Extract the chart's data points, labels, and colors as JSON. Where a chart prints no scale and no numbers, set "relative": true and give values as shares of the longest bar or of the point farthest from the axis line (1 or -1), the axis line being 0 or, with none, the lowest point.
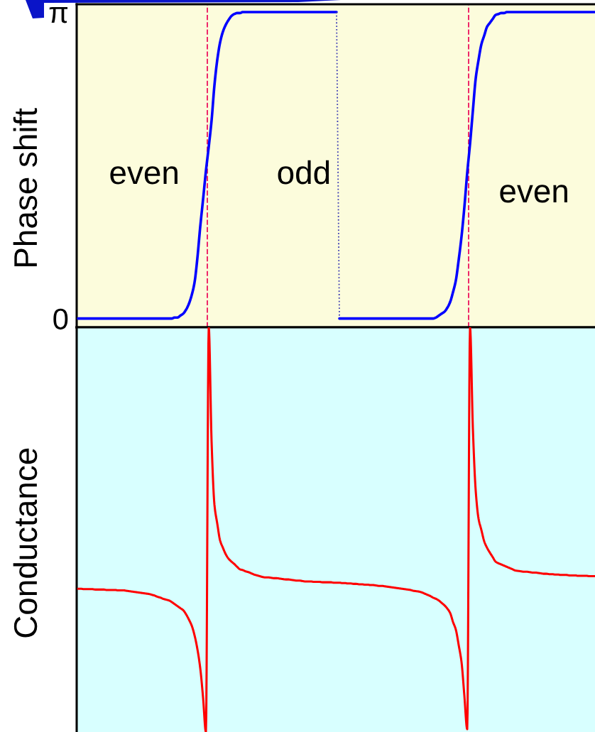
{
  "chart_data": [
    {
      "type": "line",
      "ylabel": "Phase shift",
      "tick_labels": "y",
      "ylim": [
        -0.09,
        3.22
      ],
      "yticks": [
        {
          "value": 3.14,
          "label": "π"
        },
        0
      ],
      "categories": [
        null,
        null,
        null,
        null,
        null,
        null,
        null,
        null,
        null,
        null,
        null,
        null,
        null,
        null,
        null,
        null,
        null,
        null,
        null,
        null,
        null,
        null,
        null,
        null,
        null,
        null,
        null,
        null,
        null,
        null,
        null,
        null,
        null,
        null,
        null,
        null,
        null,
        null,
        null,
        null,
        null,
        null,
        null,
        null,
        null,
        null,
        null,
        null,
        null,
        null,
        null,
        null,
        null,
        null,
        null,
        null,
        null,
        null,
        null,
        null,
        null,
        null,
        null,
        null,
        null,
        null,
        null,
        null,
        null,
        null,
        null,
        null,
        null,
        null,
        null,
        null,
        null,
        null,
        null,
        null,
        null,
        null,
        null,
        null,
        null,
        null,
        null,
        null,
        null,
        null,
        null,
        null,
        null,
        null,
        null,
        null,
        null,
        null,
        null,
        null,
        null,
        null,
        null,
        null,
        null,
        null,
        null,
        null,
        null,
        null,
        null,
        null,
        null,
        null,
        null,
        null,
        null,
        null,
        null,
        null,
        null,
        null,
        null,
        null,
        null,
        null,
        null,
        null,
        null,
        null,
        null,
        null,
        null,
        null,
        null,
        null,
        null,
        null,
        null,
        null,
        null,
        null,
        null,
        null,
        null,
        null,
        null,
        null,
        null,
        null,
        null,
        null,
        null,
        null,
        null,
        null,
        null,
        null,
        null,
        null,
        null,
        null,
        null,
        null,
        null,
        null,
        null,
        null,
        null,
        null,
        null,
        null,
        null,
        null,
        null,
        null,
        null,
        null,
        null,
        null,
        null,
        null,
        null
      ],
      "series": [
        {
          "color": "#0000ff",
          "values": [
            0,
            0,
            0,
            0,
            0,
            0,
            0,
            0,
            0,
            0,
            0,
            0,
            0,
            0,
            0,
            0,
            0,
            0,
            0,
            0,
            0,
            0,
            0,
            0,
            0,
            0,
            0,
            0,
            0,
            0,
            0,
            0,
            0,
            0,
            0.01,
            0.01,
            0.03,
            0.05,
            0.09,
            0.15,
            0.24,
            0.37,
            0.62,
            0.94,
            1.22,
            1.51,
            1.76,
            2.03,
            2.39,
            2.65,
            2.83,
            2.94,
            3.01,
            3.06,
            3.1,
            3.12,
            3.13,
            3.13,
            3.14,
            3.14,
            3.14,
            3.14,
            3.14,
            3.14,
            3.14,
            3.14,
            3.14,
            3.14,
            3.14,
            3.14,
            3.14,
            3.14,
            3.14,
            3.14,
            3.14,
            3.14,
            3.14,
            3.14,
            3.14,
            3.14,
            3.14,
            3.14,
            3.14,
            3.14,
            3.14,
            3.14,
            3.14,
            3.14,
            3.14,
            3.14,
            3.14,
            3.14,
            null,
            null,
            null,
            null,
            null,
            null,
            null,
            null,
            null,
            null,
            null,
            null,
            null,
            null,
            null,
            null,
            null,
            null,
            null,
            null,
            null,
            null,
            null,
            null,
            null,
            null,
            null,
            null,
            null,
            null,
            null,
            null,
            null,
            null,
            null,
            null,
            null,
            null,
            null,
            null,
            null,
            null,
            null,
            null,
            null,
            null,
            null,
            null,
            null,
            null,
            null,
            null,
            null,
            null,
            null,
            null,
            null,
            null,
            null,
            null,
            null,
            null,
            null,
            null,
            null,
            null,
            null,
            null,
            null,
            null,
            null,
            null,
            null,
            null,
            null,
            null,
            null,
            null,
            null,
            null,
            null,
            null,
            null,
            null,
            null,
            null,
            null,
            null,
            null,
            null,
            null
          ]
        },
        {
          "color": "#3c3cb4",
          "line_style": "dotted",
          "values": [
            null,
            null,
            null,
            null,
            null,
            null,
            null,
            null,
            null,
            null,
            null,
            null,
            null,
            null,
            null,
            null,
            null,
            null,
            null,
            null,
            null,
            null,
            null,
            null,
            null,
            null,
            null,
            null,
            null,
            null,
            null,
            null,
            null,
            null,
            null,
            null,
            null,
            null,
            null,
            null,
            null,
            null,
            null,
            null,
            null,
            null,
            null,
            null,
            null,
            null,
            null,
            null,
            null,
            null,
            null,
            null,
            null,
            null,
            null,
            null,
            null,
            null,
            null,
            null,
            null,
            null,
            null,
            null,
            null,
            null,
            null,
            null,
            null,
            null,
            null,
            null,
            null,
            null,
            null,
            null,
            null,
            null,
            null,
            null,
            null,
            null,
            null,
            null,
            null,
            null,
            null,
            3.14,
            0,
            null,
            null,
            null,
            null,
            null,
            null,
            null,
            null,
            null,
            null,
            null,
            null,
            null,
            null,
            null,
            null,
            null,
            null,
            null,
            null,
            null,
            null,
            null,
            null,
            null,
            null,
            null,
            null,
            null,
            null,
            null,
            null,
            null,
            null,
            null,
            null,
            null,
            null,
            null,
            null,
            null,
            null,
            null,
            null,
            null,
            null,
            null,
            null,
            null,
            null,
            null,
            null,
            null,
            null,
            null,
            null,
            null,
            null,
            null,
            null,
            null,
            null,
            null,
            null,
            null,
            null,
            null,
            null,
            null,
            null,
            null,
            null,
            null,
            null,
            null,
            null,
            null,
            null,
            null,
            null,
            null,
            null,
            null,
            null,
            null,
            null,
            null,
            null,
            null,
            null
          ]
        },
        {
          "color": "#0000ff",
          "values": [
            null,
            null,
            null,
            null,
            null,
            null,
            null,
            null,
            null,
            null,
            null,
            null,
            null,
            null,
            null,
            null,
            null,
            null,
            null,
            null,
            null,
            null,
            null,
            null,
            null,
            null,
            null,
            null,
            null,
            null,
            null,
            null,
            null,
            null,
            null,
            null,
            null,
            null,
            null,
            null,
            null,
            null,
            null,
            null,
            null,
            null,
            null,
            null,
            null,
            null,
            null,
            null,
            null,
            null,
            null,
            null,
            null,
            null,
            null,
            null,
            null,
            null,
            null,
            null,
            null,
            null,
            null,
            null,
            null,
            null,
            null,
            null,
            null,
            null,
            null,
            null,
            null,
            null,
            null,
            null,
            null,
            null,
            null,
            null,
            null,
            null,
            null,
            null,
            null,
            null,
            null,
            null,
            0,
            0,
            0,
            0,
            0,
            0,
            0,
            0,
            0,
            0,
            0,
            0,
            0,
            0,
            0,
            0,
            0,
            0,
            0,
            0,
            0,
            0,
            0,
            0,
            0,
            0,
            0,
            0,
            0,
            0,
            0,
            0,
            0,
            0,
            0.01,
            0.03,
            0.05,
            0.07,
            0.11,
            0.17,
            0.27,
            0.39,
            0.6,
            0.84,
            1.14,
            1.49,
            1.79,
            2.13,
            2.46,
            2.65,
            2.81,
            2.9,
            2.99,
            3.03,
            3.07,
            3.11,
            3.12,
            3.13,
            3.13,
            3.14,
            3.14,
            3.14,
            3.14,
            3.14,
            3.14,
            3.14,
            3.14,
            3.14,
            3.14,
            3.14,
            3.14,
            3.14,
            3.14,
            3.14,
            3.14,
            3.14,
            3.14,
            3.14,
            3.14,
            3.14,
            3.14,
            3.14,
            3.14,
            3.14,
            3.14,
            3.14,
            3.14,
            3.14,
            3.14,
            3.14,
            3.14
          ]
        }
      ],
      "annotations": [
        "even",
        "odd",
        "even"
      ]
    },
    {
      "type": "line",
      "ylabel": "Conductance",
      "relative": true,
      "tick_labels": false,
      "categories": [
        null,
        null,
        null,
        null,
        null,
        null,
        null,
        null,
        null,
        null,
        null,
        null,
        null,
        null,
        null,
        null,
        null,
        null,
        null,
        null,
        null,
        null,
        null,
        null,
        null,
        null,
        null,
        null,
        null,
        null,
        null,
        null,
        null,
        null,
        null,
        null,
        null,
        null,
        null,
        null,
        null,
        null,
        null,
        null,
        null,
        null,
        null,
        null,
        null,
        null,
        null,
        null,
        null,
        null,
        null,
        null,
        null,
        null,
        null,
        null,
        null,
        null,
        null,
        null,
        null,
        null,
        null,
        null,
        null,
        null,
        null,
        null,
        null,
        null,
        null,
        null,
        null,
        null,
        null,
        null,
        null,
        null,
        null,
        null,
        null,
        null,
        null,
        null,
        null,
        null,
        null,
        null,
        null,
        null,
        null,
        null,
        null,
        null,
        null,
        null,
        null,
        null,
        null,
        null,
        null,
        null,
        null,
        null,
        null,
        null,
        null,
        null,
        null,
        null,
        null,
        null,
        null,
        null,
        null,
        null,
        null,
        null,
        null,
        null,
        null,
        null,
        null,
        null,
        null,
        null,
        null,
        null,
        null,
        null,
        null,
        null,
        null,
        null,
        null,
        null,
        null,
        null,
        null,
        null,
        null,
        null,
        null,
        null,
        null,
        null,
        null,
        null,
        null,
        null,
        null,
        null,
        null,
        null,
        null,
        null,
        null,
        null,
        null,
        null,
        null,
        null,
        null,
        null,
        null,
        null,
        null,
        null,
        null,
        null,
        null,
        null,
        null,
        null,
        null,
        null,
        null,
        null,
        null
      ],
      "series": [
        {
          "color": "#ff0000",
          "values": [
            0.354,
            0.354,
            0.353,
            0.353,
            0.353,
            0.353,
            0.352,
            0.352,
            0.352,
            0.352,
            0.351,
            0.351,
            0.351,
            0.351,
            0.35,
            0.35,
            0.35,
            0.349,
            0.348,
            0.347,
            0.346,
            0.345,
            0.344,
            0.343,
            0.342,
            0.341,
            0.339,
            0.337,
            0.334,
            0.332,
            0.329,
            0.327,
            0.325,
            0.321,
            0.316,
            0.311,
            0.306,
            0.301,
            0.291,
            0.278,
            0.263,
            0.239,
            0.205,
            0.158,
            0.085,
            0,
            1,
            0.717,
            0.562,
            0.515,
            0.473,
            0.455,
            0.439,
            0.428,
            0.421,
            0.415,
            0.408,
            0.402,
            0.4,
            0.397,
            0.395,
            0.392,
            0.389,
            0.387,
            0.385,
            0.383,
            0.382,
            0.382,
            0.381,
            0.38,
            0.38,
            0.379,
            0.378,
            0.377,
            0.377,
            0.376,
            0.375,
            0.374,
            0.374,
            0.373,
            0.372,
            0.372,
            0.372,
            0.371,
            0.371,
            0.371,
            0.37,
            0.37,
            0.37,
            0.37,
            0.369,
            0.369,
            0.369,
            0.368,
            0.368,
            0.367,
            0.367,
            0.366,
            0.366,
            0.365,
            0.365,
            0.364,
            0.364,
            0.363,
            0.363,
            0.362,
            0.361,
            0.361,
            0.36,
            0.359,
            0.358,
            0.357,
            0.356,
            0.355,
            0.354,
            0.353,
            0.352,
            0.351,
            0.349,
            0.348,
            0.347,
            0.345,
            0.342,
            0.339,
            0.336,
            0.332,
            0.329,
            0.325,
            0.319,
            0.313,
            0.305,
            0.294,
            0.272,
            0.253,
            0.215,
            0.173,
            0.09,
            0.007,
            1,
            0.75,
            0.596,
            0.527,
            0.499,
            0.471,
            0.455,
            0.443,
            0.432,
            0.421,
            0.417,
            0.414,
            0.411,
            0.408,
            0.405,
            0.402,
            0.399,
            0.398,
            0.397,
            0.396,
            0.396,
            0.395,
            0.394,
            0.394,
            0.393,
            0.392,
            0.391,
            0.391,
            0.39,
            0.39,
            0.389,
            0.389,
            0.388,
            0.388,
            0.388,
            0.387,
            0.387,
            0.387,
            0.386,
            0.386,
            0.386,
            0.386,
            0.385,
            0.385,
            0.385
          ]
        }
      ]
    }
  ]
}
